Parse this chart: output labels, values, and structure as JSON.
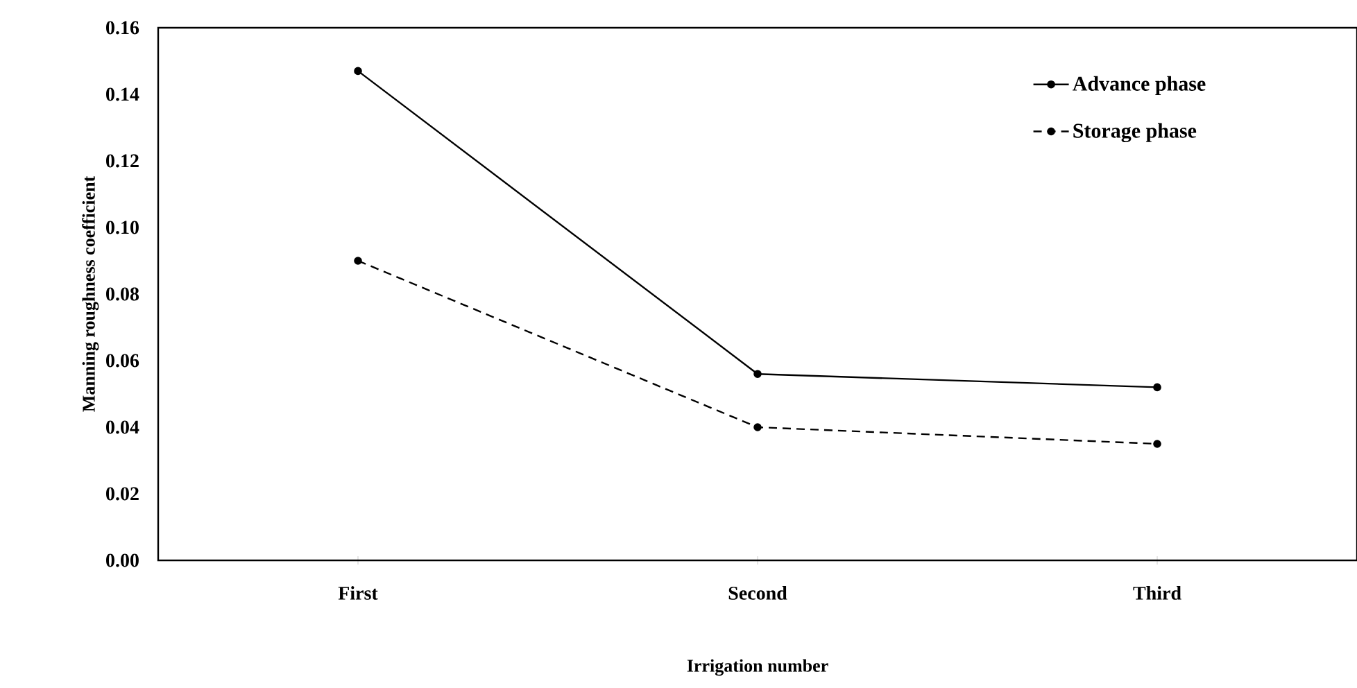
{
  "chart_data": {
    "type": "line",
    "xlabel": "Irrigation number",
    "ylabel": "Manning roughness coefficient",
    "categories": [
      "First",
      "Second",
      "Third"
    ],
    "series": [
      {
        "name": "Advance phase",
        "color": "#000000",
        "line_style": "solid",
        "values": [
          0.147,
          0.056,
          0.052
        ]
      },
      {
        "name": "Storage phase",
        "color": "#000000",
        "line_style": "dashed",
        "values": [
          0.09,
          0.04,
          0.035
        ]
      }
    ],
    "ylim": [
      0,
      0.16
    ],
    "yticks": [
      {
        "value": 0,
        "label": "0.00"
      },
      {
        "value": 0.02,
        "label": "0.02"
      },
      {
        "value": 0.04,
        "label": "0.04"
      },
      {
        "value": 0.06,
        "label": "0.06"
      },
      {
        "value": 0.08,
        "label": "0.08"
      },
      {
        "value": 0.1,
        "label": "0.10"
      },
      {
        "value": 0.12,
        "label": "0.12"
      },
      {
        "value": 0.14,
        "label": "0.14"
      },
      {
        "value": 0.16,
        "label": "0.16"
      }
    ],
    "marker": "circle",
    "legend": "top right"
  }
}
